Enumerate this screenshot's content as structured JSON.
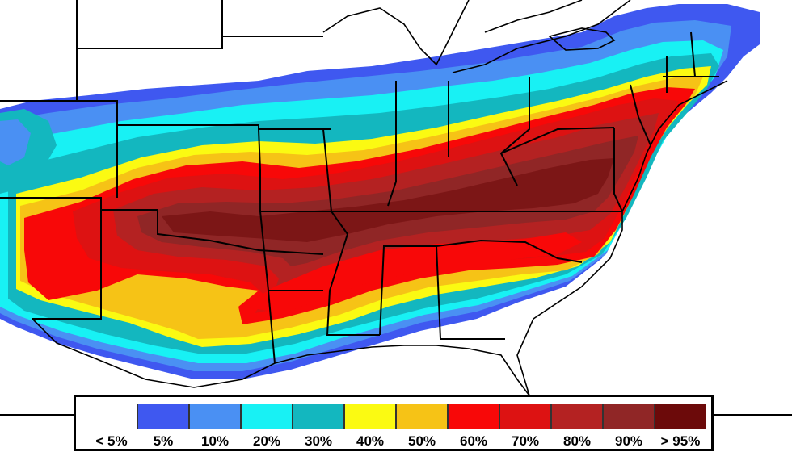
{
  "map": {
    "legend": {
      "bins": [
        {
          "label": "< 5%",
          "color": "#ffffff"
        },
        {
          "label": "5%",
          "color": "#3f58f0"
        },
        {
          "label": "10%",
          "color": "#4a90f3"
        },
        {
          "label": "20%",
          "color": "#18f1f4"
        },
        {
          "label": "30%",
          "color": "#13b7bf"
        },
        {
          "label": "40%",
          "color": "#fbfa12"
        },
        {
          "label": "50%",
          "color": "#f6c316"
        },
        {
          "label": "60%",
          "color": "#f80808"
        },
        {
          "label": "70%",
          "color": "#dd1212"
        },
        {
          "label": "80%",
          "color": "#b42222"
        },
        {
          "label": "90%",
          "color": "#902626"
        },
        {
          "label": "> 95%",
          "color": "#6c0a0a"
        }
      ]
    }
  }
}
